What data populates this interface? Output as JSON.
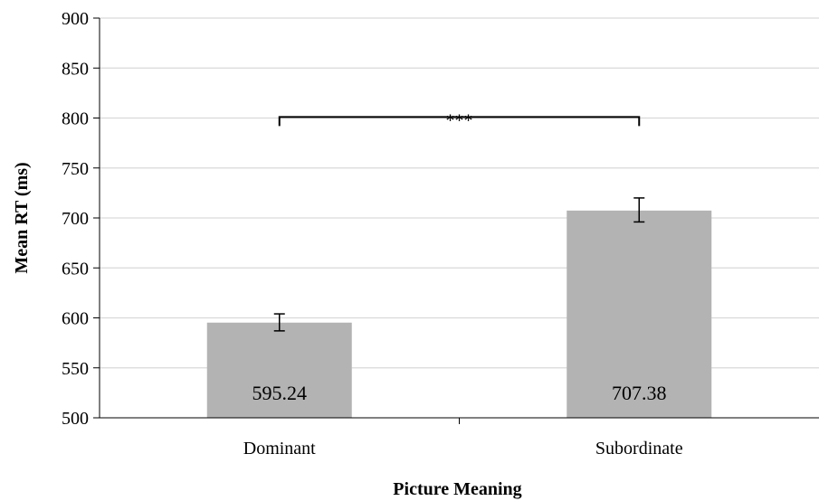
{
  "chart_data": {
    "type": "bar",
    "categories": [
      "Dominant",
      "Subordinate"
    ],
    "values": [
      595.24,
      707.38
    ],
    "data_labels": [
      "595.24",
      "707.38"
    ],
    "error_bars": [
      [
        587,
        604
      ],
      [
        696,
        720
      ]
    ],
    "xlabel": "Picture Meaning",
    "ylabel": "Mean RT (ms)",
    "ylim": [
      500,
      900
    ],
    "yticks": [
      500,
      550,
      600,
      650,
      700,
      750,
      800,
      850,
      900
    ],
    "grid": true,
    "legend": "none",
    "bar_color": "#b3b3b3",
    "grid_color": "#d9d9d9",
    "significance": {
      "label": "***",
      "between": [
        0,
        1
      ],
      "y": 801
    }
  }
}
